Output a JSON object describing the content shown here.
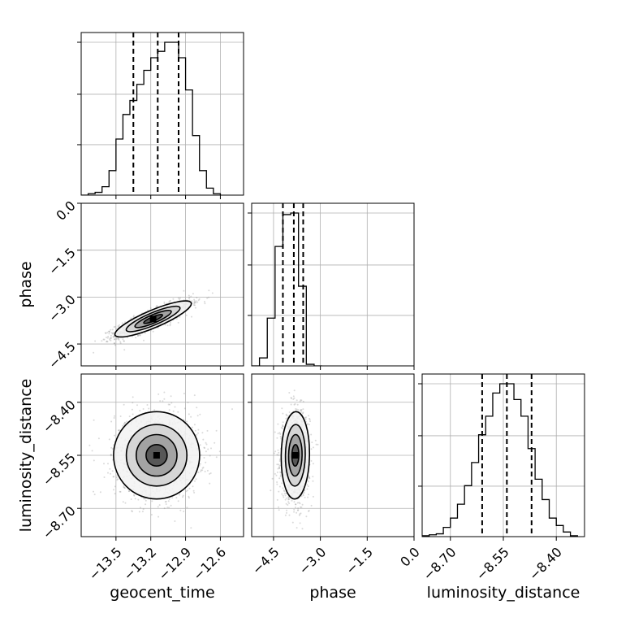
{
  "chart_data": {
    "type": "corner",
    "parameters": [
      "geocent_time",
      "phase",
      "luminosity_distance"
    ],
    "axes": {
      "geocent_time": {
        "range": [
          -13.8,
          -12.4
        ],
        "ticks": [
          -13.5,
          -13.2,
          -12.9,
          -12.6
        ],
        "tick_labels": [
          "−13.5",
          "−13.2",
          "−12.9",
          "−12.6"
        ],
        "label": "geocent_time"
      },
      "phase": {
        "range": [
          -5.2,
          0.0
        ],
        "ticks": [
          -4.5,
          -3.0,
          -1.5,
          0.0
        ],
        "tick_labels": [
          "−4.5",
          "−3.0",
          "−1.5",
          "0.0"
        ],
        "label": "phase"
      },
      "luminosity_distance": {
        "range": [
          -8.78,
          -8.32
        ],
        "ticks": [
          -8.7,
          -8.55,
          -8.4
        ],
        "tick_labels": [
          "−8.70",
          "−8.55",
          "−8.40"
        ],
        "label": "luminosity_distance"
      }
    },
    "histograms": {
      "geocent_time": {
        "bin_edges": [
          -13.8,
          -13.74,
          -13.68,
          -13.62,
          -13.56,
          -13.5,
          -13.44,
          -13.38,
          -13.32,
          -13.26,
          -13.2,
          -13.14,
          -13.08,
          -13.02,
          -12.96,
          -12.9,
          -12.84,
          -12.78,
          -12.72,
          -12.66,
          -12.6
        ],
        "counts": [
          0,
          2,
          4,
          12,
          35,
          80,
          115,
          135,
          158,
          178,
          196,
          205,
          218,
          218,
          196,
          150,
          85,
          35,
          10,
          2
        ],
        "quantiles": [
          -13.35,
          -13.14,
          -12.96
        ]
      },
      "phase": {
        "bin_edges": [
          -5.2,
          -4.95,
          -4.7,
          -4.45,
          -4.2,
          -3.95,
          -3.7,
          -3.45,
          -3.2,
          -2.95
        ],
        "counts": [
          0,
          10,
          60,
          150,
          190,
          192,
          100,
          2,
          0
        ],
        "quantiles": [
          -4.2,
          -3.85,
          -3.55
        ]
      },
      "luminosity_distance": {
        "bin_edges": [
          -8.78,
          -8.76,
          -8.74,
          -8.72,
          -8.7,
          -8.68,
          -8.66,
          -8.64,
          -8.62,
          -8.6,
          -8.58,
          -8.56,
          -8.54,
          -8.52,
          -8.5,
          -8.48,
          -8.46,
          -8.44,
          -8.42,
          -8.4,
          -8.38,
          -8.36,
          -8.34
        ],
        "counts": [
          1,
          2,
          3,
          10,
          20,
          35,
          55,
          80,
          110,
          130,
          155,
          165,
          165,
          148,
          130,
          95,
          62,
          40,
          20,
          12,
          5,
          1
        ],
        "quantiles": [
          -8.61,
          -8.54,
          -8.47
        ]
      }
    },
    "pairs": [
      {
        "x": "geocent_time",
        "y": "phase",
        "mean": [
          -13.18,
          -3.7
        ],
        "sd": [
          0.16,
          0.28
        ],
        "rho": 0.85,
        "contours": [
          0.12,
          0.35,
          0.62,
          0.88
        ]
      },
      {
        "x": "geocent_time",
        "y": "luminosity_distance",
        "mean": [
          -13.15,
          -8.55
        ],
        "sd": [
          0.18,
          0.06
        ],
        "rho": 0.0,
        "contours": [
          0.12,
          0.35,
          0.62,
          0.88
        ]
      },
      {
        "x": "phase",
        "y": "luminosity_distance",
        "mean": [
          -3.8,
          -8.55
        ],
        "sd": [
          0.22,
          0.06
        ],
        "rho": 0.05,
        "contours": [
          0.12,
          0.35,
          0.62,
          0.88
        ]
      }
    ],
    "grid": true
  }
}
